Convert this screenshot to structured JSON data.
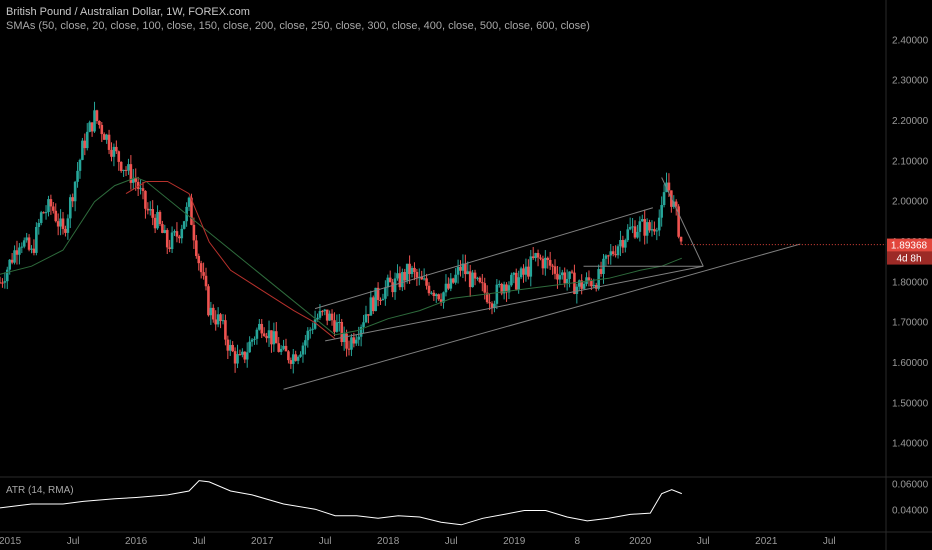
{
  "header": {
    "title": "British Pound / Australian Dollar, 1W, FOREX.com",
    "studies": "SMAs (50, close, 20, close, 100, close, 150, close, 200, close, 250, close, 300, close, 400, close, 500, close, 600, close)"
  },
  "chart_data": {
    "type": "candlestick",
    "symbol": "GBPAUD",
    "timeframe": "1W",
    "x_labels": [
      "2015",
      "Jul",
      "2016",
      "Jul",
      "2017",
      "Jul",
      "2018",
      "Jul",
      "2019",
      "8",
      "2020",
      "Jul",
      "2021",
      "Jul"
    ],
    "x_label_dates": [
      2015.0,
      2015.5,
      2016.0,
      2016.5,
      2017.0,
      2017.5,
      2018.0,
      2018.5,
      2019.0,
      2019.5,
      2020.0,
      2020.5,
      2021.0,
      2021.5
    ],
    "x_range": [
      2014.92,
      2021.95
    ],
    "y_ticks": [
      1.4,
      1.5,
      1.6,
      1.7,
      1.8,
      1.9,
      2.0,
      2.1,
      2.2,
      2.3,
      2.4
    ],
    "y_tick_labels": [
      "1.40000",
      "1.50000",
      "1.60000",
      "1.70000",
      "1.80000",
      "1.90000",
      "2.00000",
      "2.10000",
      "2.20000",
      "2.30000",
      "2.40000"
    ],
    "y_range": [
      1.32,
      2.5
    ],
    "price_series": [
      [
        2014.92,
        1.8
      ],
      [
        2015.0,
        1.85
      ],
      [
        2015.08,
        1.91
      ],
      [
        2015.17,
        1.87
      ],
      [
        2015.25,
        1.97
      ],
      [
        2015.33,
        1.99
      ],
      [
        2015.42,
        1.92
      ],
      [
        2015.5,
        2.03
      ],
      [
        2015.58,
        2.14
      ],
      [
        2015.67,
        2.21
      ],
      [
        2015.75,
        2.17
      ],
      [
        2015.83,
        2.12
      ],
      [
        2015.92,
        2.08
      ],
      [
        2016.0,
        2.05
      ],
      [
        2016.08,
        1.98
      ],
      [
        2016.17,
        1.95
      ],
      [
        2016.25,
        1.89
      ],
      [
        2016.33,
        1.92
      ],
      [
        2016.42,
        1.99
      ],
      [
        2016.5,
        1.85
      ],
      [
        2016.58,
        1.73
      ],
      [
        2016.67,
        1.7
      ],
      [
        2016.75,
        1.63
      ],
      [
        2016.83,
        1.6
      ],
      [
        2016.92,
        1.66
      ],
      [
        2017.0,
        1.7
      ],
      [
        2017.08,
        1.66
      ],
      [
        2017.17,
        1.62
      ],
      [
        2017.25,
        1.62
      ],
      [
        2017.33,
        1.65
      ],
      [
        2017.42,
        1.71
      ],
      [
        2017.5,
        1.72
      ],
      [
        2017.58,
        1.7
      ],
      [
        2017.67,
        1.64
      ],
      [
        2017.75,
        1.68
      ],
      [
        2017.83,
        1.73
      ],
      [
        2017.92,
        1.77
      ],
      [
        2018.0,
        1.79
      ],
      [
        2018.08,
        1.8
      ],
      [
        2018.17,
        1.83
      ],
      [
        2018.25,
        1.8
      ],
      [
        2018.33,
        1.79
      ],
      [
        2018.42,
        1.77
      ],
      [
        2018.5,
        1.79
      ],
      [
        2018.58,
        1.84
      ],
      [
        2018.67,
        1.8
      ],
      [
        2018.75,
        1.78
      ],
      [
        2018.83,
        1.76
      ],
      [
        2018.92,
        1.8
      ],
      [
        2019.0,
        1.8
      ],
      [
        2019.08,
        1.82
      ],
      [
        2019.17,
        1.86
      ],
      [
        2019.25,
        1.85
      ],
      [
        2019.33,
        1.83
      ],
      [
        2019.42,
        1.81
      ],
      [
        2019.5,
        1.79
      ],
      [
        2019.58,
        1.8
      ],
      [
        2019.67,
        1.81
      ],
      [
        2019.75,
        1.86
      ],
      [
        2019.83,
        1.9
      ],
      [
        2019.92,
        1.93
      ],
      [
        2020.0,
        1.94
      ],
      [
        2020.08,
        1.93
      ],
      [
        2020.17,
        1.97
      ],
      [
        2020.21,
        2.05
      ],
      [
        2020.29,
        1.96
      ],
      [
        2020.33,
        1.89
      ]
    ],
    "sma_red": [
      [
        2015.92,
        2.02
      ],
      [
        2016.08,
        2.05
      ],
      [
        2016.25,
        2.05
      ],
      [
        2016.42,
        2.02
      ],
      [
        2016.58,
        1.9
      ],
      [
        2016.75,
        1.83
      ],
      [
        2017.0,
        1.78
      ],
      [
        2017.25,
        1.73
      ],
      [
        2017.42,
        1.7
      ],
      [
        2017.58,
        1.66
      ]
    ],
    "sma_green": [
      [
        2014.92,
        1.82
      ],
      [
        2015.17,
        1.84
      ],
      [
        2015.42,
        1.88
      ],
      [
        2015.67,
        2.0
      ],
      [
        2015.83,
        2.04
      ],
      [
        2016.0,
        2.06
      ],
      [
        2016.08,
        2.05
      ],
      [
        2017.58,
        1.67
      ],
      [
        2017.75,
        1.68
      ],
      [
        2018.0,
        1.71
      ],
      [
        2018.25,
        1.73
      ],
      [
        2018.5,
        1.76
      ],
      [
        2018.75,
        1.77
      ],
      [
        2019.0,
        1.78
      ],
      [
        2019.25,
        1.79
      ],
      [
        2019.5,
        1.8
      ],
      [
        2019.75,
        1.81
      ],
      [
        2020.0,
        1.83
      ],
      [
        2020.17,
        1.84
      ],
      [
        2020.33,
        1.86
      ]
    ],
    "trendlines": [
      {
        "from": [
          2017.17,
          1.535
        ],
        "to": [
          2021.27,
          1.895
        ]
      },
      {
        "from": [
          2017.42,
          1.735
        ],
        "to": [
          2020.1,
          1.985
        ]
      },
      {
        "from": [
          2017.5,
          1.655
        ],
        "to": [
          2020.5,
          1.84
        ]
      },
      {
        "from": [
          2019.55,
          1.84
        ],
        "to": [
          2020.5,
          1.84
        ]
      },
      {
        "from": [
          2020.17,
          2.06
        ],
        "to": [
          2020.5,
          1.84
        ]
      }
    ],
    "last_price": "1.89368",
    "countdown": "4d 8h",
    "last_value": 1.89368,
    "atr": {
      "label": "ATR (14, RMA)",
      "y_ticks": [
        0.04,
        0.06
      ],
      "y_tick_labels": [
        "0.04000",
        "0.06000"
      ],
      "y_range": [
        0.025,
        0.065
      ],
      "values": [
        [
          2014.92,
          0.042
        ],
        [
          2015.17,
          0.045
        ],
        [
          2015.42,
          0.045
        ],
        [
          2015.58,
          0.047
        ],
        [
          2015.83,
          0.049
        ],
        [
          2016.0,
          0.05
        ],
        [
          2016.25,
          0.052
        ],
        [
          2016.42,
          0.055
        ],
        [
          2016.5,
          0.063
        ],
        [
          2016.58,
          0.062
        ],
        [
          2016.75,
          0.055
        ],
        [
          2016.92,
          0.052
        ],
        [
          2017.17,
          0.045
        ],
        [
          2017.42,
          0.041
        ],
        [
          2017.58,
          0.036
        ],
        [
          2017.75,
          0.036
        ],
        [
          2017.92,
          0.034
        ],
        [
          2018.08,
          0.036
        ],
        [
          2018.25,
          0.035
        ],
        [
          2018.42,
          0.031
        ],
        [
          2018.58,
          0.029
        ],
        [
          2018.75,
          0.034
        ],
        [
          2018.92,
          0.037
        ],
        [
          2019.08,
          0.04
        ],
        [
          2019.25,
          0.04
        ],
        [
          2019.42,
          0.035
        ],
        [
          2019.58,
          0.032
        ],
        [
          2019.75,
          0.034
        ],
        [
          2019.92,
          0.037
        ],
        [
          2020.08,
          0.038
        ],
        [
          2020.17,
          0.053
        ],
        [
          2020.25,
          0.056
        ],
        [
          2020.33,
          0.053
        ]
      ]
    }
  },
  "colors": {
    "background": "#000000",
    "bull": "#26a69a",
    "bear": "#ef5350",
    "sma_red": "#b7312c",
    "sma_green": "#2e6b3c",
    "trendline": "#808080",
    "atr_line": "#ffffff",
    "price_badge": "#e2463c",
    "countdown_badge": "#9c2a26"
  }
}
